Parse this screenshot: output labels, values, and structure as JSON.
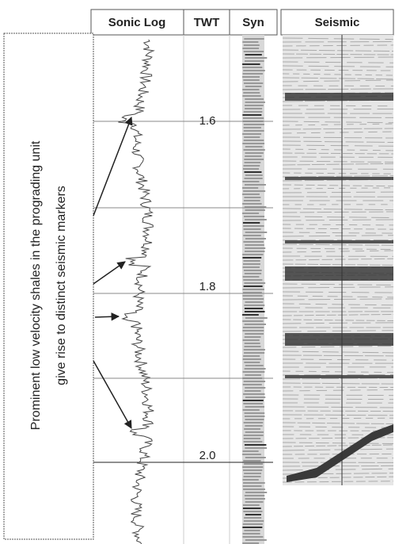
{
  "headers": [
    "Sonic Log",
    "TWT",
    "Syn",
    "Seismic"
  ],
  "twt_labels": [
    "1.6",
    "1.8",
    "2.0"
  ],
  "annotation": {
    "lines": [
      "Prominent low velocity shales in the prograding unit",
      "give rise to distinct seismic markers"
    ]
  }
}
